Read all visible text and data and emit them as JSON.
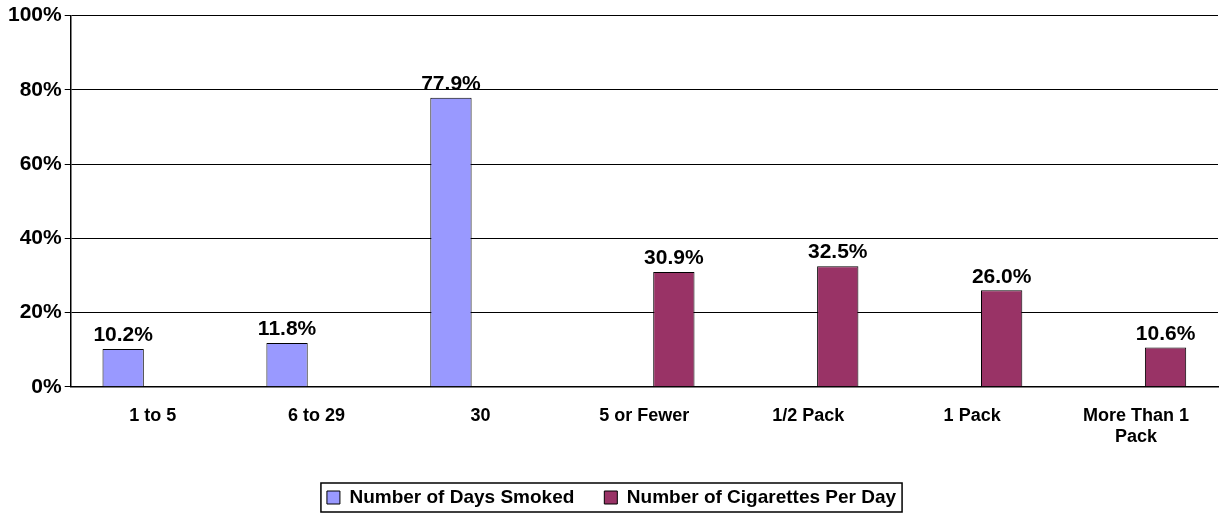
{
  "chart_data": {
    "type": "bar",
    "categories": [
      "1 to 5",
      "6 to 29",
      "30",
      "5 or Fewer",
      "1/2 Pack",
      "1 Pack",
      "More Than 1 Pack"
    ],
    "series": [
      {
        "name": "Number of Days Smoked",
        "color": "#9999ff",
        "values": [
          10.2,
          11.8,
          77.9,
          null,
          null,
          null,
          null
        ],
        "value_labels": [
          "10.2%",
          "11.8%",
          "77.9%",
          null,
          null,
          null,
          null
        ]
      },
      {
        "name": "Number of Cigarettes Per Day",
        "color": "#993366",
        "values": [
          null,
          null,
          null,
          30.9,
          32.5,
          26.0,
          10.6
        ],
        "value_labels": [
          null,
          null,
          null,
          "30.9%",
          "32.5%",
          "26.0%",
          "10.6%"
        ]
      }
    ],
    "ylim": [
      0,
      100
    ],
    "yticks": [
      {
        "value": 0,
        "label": "0%"
      },
      {
        "value": 20,
        "label": "20%"
      },
      {
        "value": 40,
        "label": "40%"
      },
      {
        "value": 60,
        "label": "60%"
      },
      {
        "value": 80,
        "label": "80%"
      },
      {
        "value": 100,
        "label": "100%"
      }
    ],
    "grid": "y",
    "legend": "bottom"
  }
}
